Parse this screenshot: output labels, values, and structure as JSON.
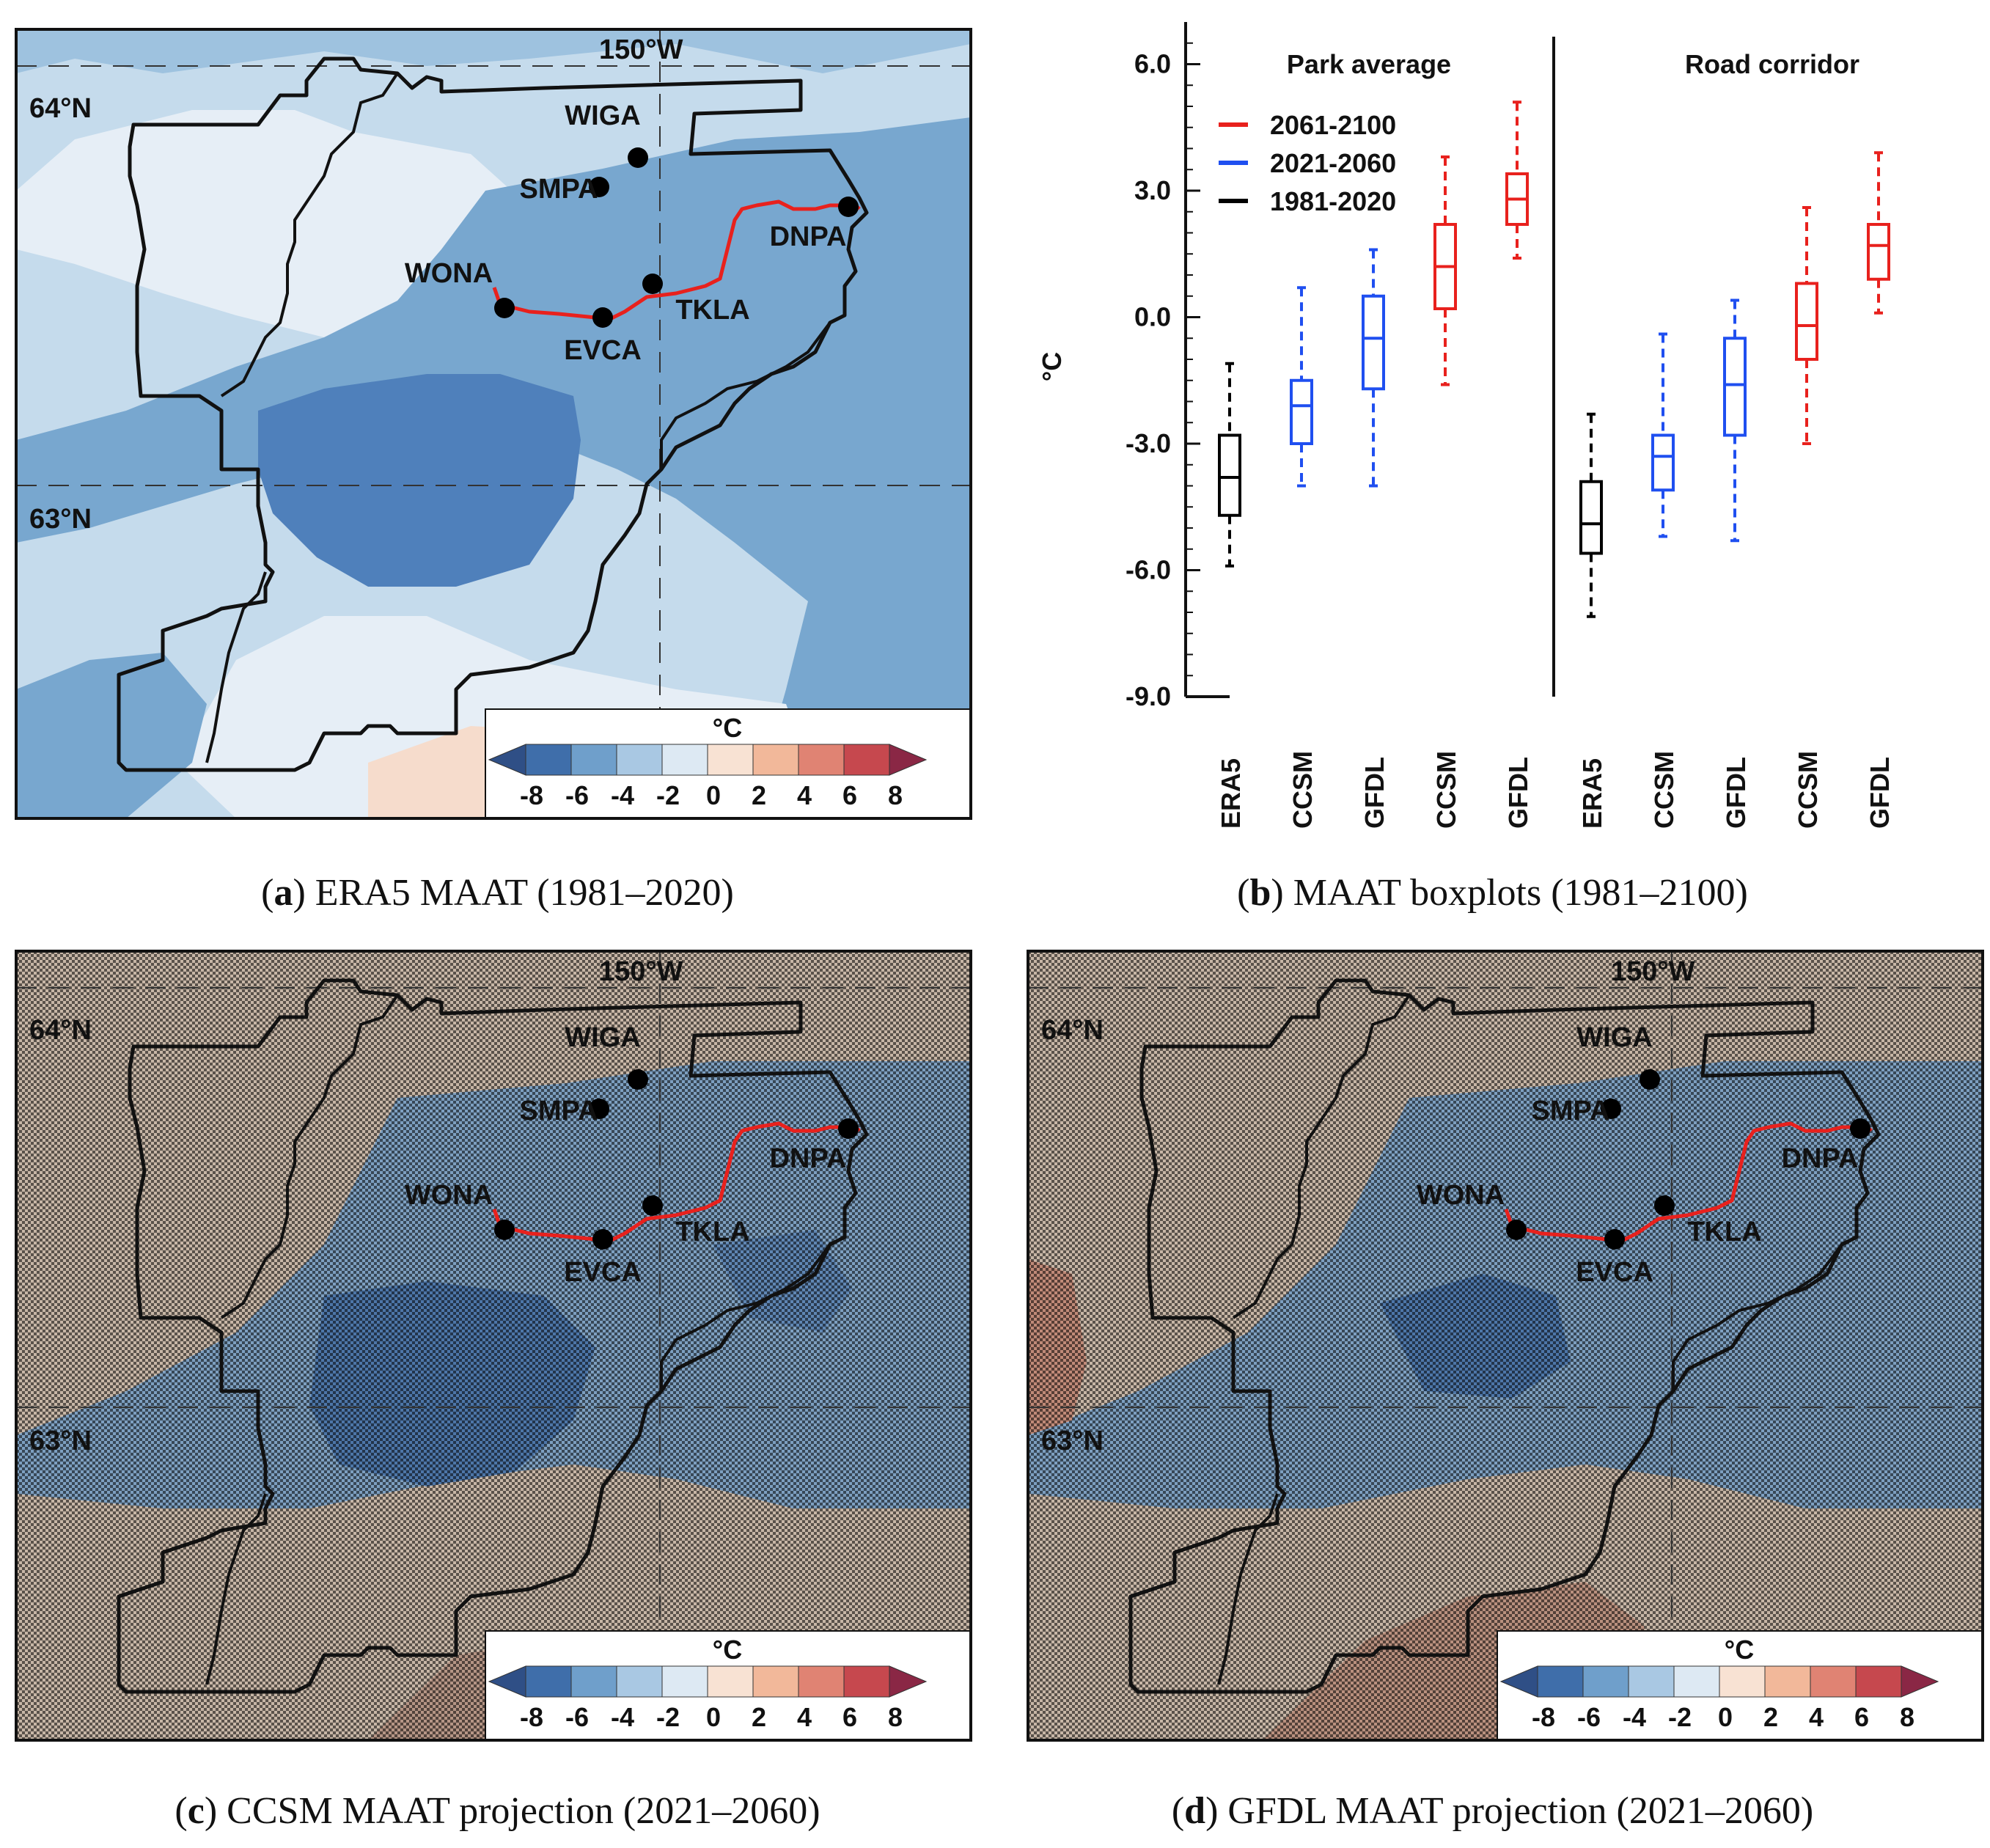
{
  "captions": [
    {
      "letter": "a",
      "text": " ERA5 MAAT (1981–2020)"
    },
    {
      "letter": "b",
      "text": " MAAT boxplots (1981–2100)"
    },
    {
      "letter": "c",
      "text": " CCSM MAAT projection (2021–2060)"
    },
    {
      "letter": "d",
      "text": " GFDL MAAT projection (2021–2060)"
    }
  ],
  "map_labels": {
    "lon": "150°W",
    "lat_top": "64°N",
    "lat_bottom": "63°N",
    "stations": [
      "WIGA",
      "SMPA",
      "WONA",
      "EVCA",
      "TKLA",
      "DNPA"
    ]
  },
  "colorbar": {
    "unit": "°C",
    "ticks": [
      "-8",
      "-6",
      "-4",
      "-2",
      "0",
      "2",
      "4",
      "6",
      "8"
    ],
    "colors": [
      "#2f4f86",
      "#3f6eaa",
      "#6f9fcb",
      "#a9c8e3",
      "#dde9f3",
      "#f8e2d3",
      "#f2b89a",
      "#e08373",
      "#c6484e",
      "#8a2745"
    ]
  },
  "map_colors": {
    "very_light": "#e6eef6",
    "light": "#c5dbec",
    "mid": "#9ec2df",
    "dark": "#78a7cf",
    "darkest": "#4f80bb",
    "warm": "#f6dccc",
    "warm2": "#e6a893",
    "route": "#e8211d",
    "hatch_tan": "#c7b6a6",
    "hatch_blue": "#7d9fc0"
  },
  "chart_data": {
    "type": "boxplot",
    "ylabel": "°C",
    "ylim": [
      -9.0,
      7.0
    ],
    "yticks": [
      "6.0",
      "3.0",
      "0.0",
      "-3.0",
      "-6.0",
      "-9.0"
    ],
    "groups": [
      "Park average",
      "Road corridor"
    ],
    "legend": [
      {
        "label": "2061-2100",
        "color": "#e8211d"
      },
      {
        "label": "2021-2060",
        "color": "#1f4ff0"
      },
      {
        "label": "1981-2020",
        "color": "#000000"
      }
    ],
    "series": [
      {
        "group": "Park average",
        "name": "ERA5",
        "period": "1981-2020",
        "color": "#000000",
        "min": -5.9,
        "q1": -4.7,
        "median": -3.8,
        "q3": -2.8,
        "max": -1.1
      },
      {
        "group": "Park average",
        "name": "CCSM",
        "period": "2021-2060",
        "color": "#1f4ff0",
        "min": -4.0,
        "q1": -3.0,
        "median": -2.1,
        "q3": -1.5,
        "max": 0.7
      },
      {
        "group": "Park average",
        "name": "GFDL",
        "period": "2021-2060",
        "color": "#1f4ff0",
        "min": -4.0,
        "q1": -1.7,
        "median": -0.5,
        "q3": 0.5,
        "max": 1.6
      },
      {
        "group": "Park average",
        "name": "CCSM",
        "period": "2061-2100",
        "color": "#e8211d",
        "min": -1.6,
        "q1": 0.2,
        "median": 1.2,
        "q3": 2.2,
        "max": 3.8
      },
      {
        "group": "Park average",
        "name": "GFDL",
        "period": "2061-2100",
        "color": "#e8211d",
        "min": 1.4,
        "q1": 2.2,
        "median": 2.8,
        "q3": 3.4,
        "max": 5.1
      },
      {
        "group": "Road corridor",
        "name": "ERA5",
        "period": "1981-2020",
        "color": "#000000",
        "min": -7.1,
        "q1": -5.6,
        "median": -4.9,
        "q3": -3.9,
        "max": -2.3
      },
      {
        "group": "Road corridor",
        "name": "CCSM",
        "period": "2021-2060",
        "color": "#1f4ff0",
        "min": -5.2,
        "q1": -4.1,
        "median": -3.3,
        "q3": -2.8,
        "max": -0.4
      },
      {
        "group": "Road corridor",
        "name": "GFDL",
        "period": "2021-2060",
        "color": "#1f4ff0",
        "min": -5.3,
        "q1": -2.8,
        "median": -1.6,
        "q3": -0.5,
        "max": 0.4
      },
      {
        "group": "Road corridor",
        "name": "CCSM",
        "period": "2061-2100",
        "color": "#e8211d",
        "min": -3.0,
        "q1": -1.0,
        "median": -0.2,
        "q3": 0.8,
        "max": 2.6
      },
      {
        "group": "Road corridor",
        "name": "GFDL",
        "period": "2061-2100",
        "color": "#e8211d",
        "min": 0.1,
        "q1": 0.9,
        "median": 1.7,
        "q3": 2.2,
        "max": 3.9
      }
    ]
  }
}
